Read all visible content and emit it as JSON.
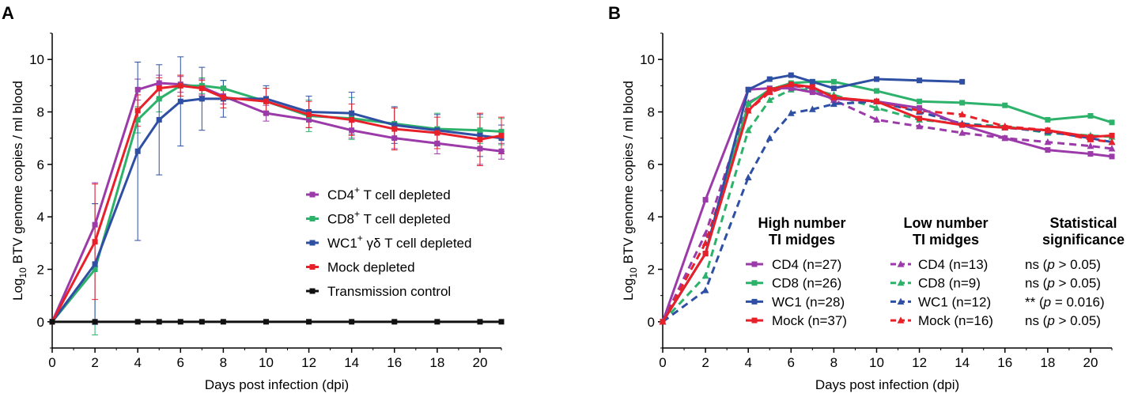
{
  "chart_data": [
    {
      "panel": "A",
      "type": "line",
      "xlabel": "Days post infection (dpi)",
      "ylabel": {
        "prefix": "Log",
        "sub": "10",
        "rest": " BTV genome copies / ml blood"
      },
      "xlim": [
        0,
        21
      ],
      "ylim": [
        -1,
        11
      ],
      "xticks": [
        0,
        2,
        4,
        6,
        8,
        10,
        12,
        14,
        16,
        18,
        20
      ],
      "yticks": [
        0,
        2,
        4,
        6,
        8,
        10
      ],
      "series": [
        {
          "name": "CD4+ T cell depleted",
          "label_main": "CD4",
          "label_sup": "+",
          "label_rest": " T cell depleted",
          "color": "#9b3aa8",
          "x": [
            0,
            2,
            4,
            5,
            6,
            7,
            8,
            10,
            12,
            14,
            16,
            18,
            20,
            21
          ],
          "y": [
            0,
            3.7,
            8.85,
            9.1,
            9.05,
            8.95,
            8.6,
            7.95,
            7.7,
            7.3,
            7.0,
            6.8,
            6.6,
            6.5
          ],
          "err": [
            0,
            1.6,
            0.4,
            0.3,
            0.3,
            0.3,
            0.3,
            0.3,
            0.3,
            0.3,
            0.4,
            0.4,
            0.6,
            0.3
          ]
        },
        {
          "name": "CD8+ T cell depleted",
          "label_main": "CD8",
          "label_sup": "+",
          "label_rest": " T cell depleted",
          "color": "#2db26b",
          "x": [
            0,
            2,
            4,
            5,
            6,
            7,
            8,
            10,
            12,
            14,
            16,
            18,
            20,
            21
          ],
          "y": [
            0,
            2.0,
            7.7,
            8.5,
            9.0,
            9.0,
            8.9,
            8.4,
            7.85,
            7.75,
            7.55,
            7.35,
            7.3,
            7.25
          ],
          "err": [
            0,
            2.5,
            0.5,
            0.5,
            0.4,
            0.3,
            0.3,
            0.5,
            0.6,
            0.8,
            0.6,
            0.6,
            0.5,
            0.5
          ]
        },
        {
          "name": "WC1+ γδ T cell depleted",
          "label_main": "WC1",
          "label_sup": "+",
          "label_rest": " γδ T cell depleted",
          "color": "#2e4fa3",
          "x": [
            0,
            2,
            4,
            5,
            6,
            7,
            8,
            10,
            12,
            14,
            16,
            18,
            20,
            21
          ],
          "y": [
            0,
            2.2,
            6.5,
            7.7,
            8.4,
            8.5,
            8.5,
            8.5,
            8.0,
            7.95,
            7.5,
            7.3,
            7.1,
            7.0
          ],
          "err": [
            0,
            2.3,
            3.4,
            2.1,
            1.7,
            1.2,
            0.7,
            0.5,
            0.6,
            0.8,
            0.7,
            0.6,
            0.8,
            0.5
          ]
        },
        {
          "name": "Mock depleted",
          "label_main": "Mock depleted",
          "label_sup": "",
          "label_rest": "",
          "color": "#e8202a",
          "x": [
            0,
            2,
            4,
            5,
            6,
            7,
            8,
            10,
            12,
            14,
            16,
            18,
            20,
            21
          ],
          "y": [
            0,
            3.05,
            8.05,
            8.9,
            9.0,
            8.9,
            8.55,
            8.4,
            7.9,
            7.7,
            7.35,
            7.2,
            6.95,
            7.1
          ],
          "err": [
            0,
            2.2,
            0.6,
            0.4,
            0.4,
            0.3,
            0.4,
            0.5,
            0.5,
            0.6,
            0.8,
            0.6,
            1.0,
            0.7
          ]
        },
        {
          "name": "Transmission control",
          "label_main": "Transmission control",
          "label_sup": "",
          "label_rest": "",
          "color": "#111111",
          "x": [
            0,
            2,
            4,
            5,
            6,
            7,
            8,
            10,
            12,
            14,
            16,
            18,
            20,
            21
          ],
          "y": [
            0,
            0,
            0,
            0,
            0,
            0,
            0,
            0,
            0,
            0,
            0,
            0,
            0,
            0
          ]
        }
      ]
    },
    {
      "panel": "B",
      "type": "line",
      "xlabel": "Days post infection (dpi)",
      "ylabel": {
        "prefix": "Log",
        "sub": "10",
        "rest": " BTV genome copies / ml blood"
      },
      "xlim": [
        0,
        21
      ],
      "ylim": [
        -1,
        11
      ],
      "xticks": [
        0,
        2,
        4,
        6,
        8,
        10,
        12,
        14,
        16,
        18,
        20
      ],
      "yticks": [
        0,
        2,
        4,
        6,
        8,
        10
      ],
      "legend": {
        "col_high": [
          "High number",
          "TI midges"
        ],
        "col_low": [
          "Low number",
          "TI midges"
        ],
        "col_stat": [
          "Statistical",
          "significance"
        ],
        "rows": [
          {
            "high": "CD4 (n=27)",
            "low": "CD4 (n=13)",
            "stat_pre": "ns (",
            "stat_p": "p",
            "stat_post": " > 0.05)",
            "color": "#9b3aa8"
          },
          {
            "high": "CD8 (n=26)",
            "low": "CD8 (n=9)",
            "stat_pre": "ns (",
            "stat_p": "p",
            "stat_post": " > 0.05)",
            "color": "#2db26b"
          },
          {
            "high": "WC1 (n=28)",
            "low": "WC1 (n=12)",
            "stat_pre": "** (",
            "stat_p": "p",
            "stat_post": " = 0.016)",
            "color": "#2e4fa3"
          },
          {
            "high": "Mock (n=37)",
            "low": "Mock (n=16)",
            "stat_pre": "ns (",
            "stat_p": "p",
            "stat_post": " > 0.05)",
            "color": "#e8202a"
          }
        ]
      },
      "series": [
        {
          "name": "CD4 (n=27)",
          "group": "high",
          "color": "#9b3aa8",
          "x": [
            0,
            2,
            4,
            5,
            6,
            7,
            8,
            10,
            12,
            14,
            16,
            18,
            20,
            21
          ],
          "y": [
            0,
            4.65,
            8.85,
            8.9,
            8.9,
            8.75,
            8.5,
            8.4,
            8.15,
            7.5,
            7.0,
            6.55,
            6.4,
            6.3
          ]
        },
        {
          "name": "CD8 (n=26)",
          "group": "high",
          "color": "#2db26b",
          "x": [
            0,
            2,
            4,
            5,
            6,
            7,
            8,
            10,
            12,
            14,
            16,
            18,
            20,
            21
          ],
          "y": [
            0,
            2.6,
            8.3,
            8.85,
            9.1,
            9.15,
            9.15,
            8.8,
            8.4,
            8.35,
            8.25,
            7.7,
            7.85,
            7.6
          ]
        },
        {
          "name": "WC1 (n=28)",
          "group": "high",
          "color": "#2e4fa3",
          "x": [
            0,
            2,
            4,
            5,
            6,
            7,
            8,
            10,
            12,
            14
          ],
          "y": [
            0,
            2.6,
            8.85,
            9.25,
            9.4,
            9.15,
            8.9,
            9.25,
            9.2,
            9.15
          ]
        },
        {
          "name": "Mock (n=37)",
          "group": "high",
          "color": "#e8202a",
          "x": [
            0,
            2,
            4,
            5,
            6,
            7,
            8,
            10,
            12,
            14,
            16,
            18,
            20,
            21
          ],
          "y": [
            0,
            2.6,
            8.05,
            8.85,
            9.05,
            8.95,
            8.55,
            8.4,
            7.75,
            7.5,
            7.4,
            7.3,
            7.05,
            7.1
          ]
        },
        {
          "name": "CD4 (n=13)",
          "group": "low",
          "color": "#9b3aa8",
          "x": [
            0,
            2,
            4,
            5,
            6,
            7,
            8,
            10,
            12,
            14,
            16,
            18,
            20,
            21
          ],
          "y": [
            0,
            3.35,
            8.35,
            8.8,
            9.0,
            8.9,
            8.45,
            7.7,
            7.45,
            7.2,
            7.0,
            6.85,
            6.7,
            6.6
          ]
        },
        {
          "name": "CD8 (n=9)",
          "group": "low",
          "color": "#2db26b",
          "x": [
            0,
            2,
            4,
            5,
            6,
            7,
            8,
            10,
            12,
            14,
            16,
            18,
            20,
            21
          ],
          "y": [
            0,
            1.75,
            7.3,
            8.45,
            8.85,
            8.85,
            8.65,
            8.15,
            7.7,
            7.55,
            7.45,
            7.2,
            7.1,
            7.05
          ]
        },
        {
          "name": "WC1 (n=12)",
          "group": "low",
          "color": "#2e4fa3",
          "x": [
            0,
            2,
            4,
            5,
            6,
            7,
            8,
            10,
            12,
            14,
            16,
            18,
            20,
            21
          ],
          "y": [
            0,
            1.2,
            5.5,
            7.0,
            7.95,
            8.1,
            8.3,
            8.4,
            8.0,
            7.55,
            7.4,
            7.25,
            7.0,
            6.85
          ]
        },
        {
          "name": "Mock (n=16)",
          "group": "low",
          "color": "#e8202a",
          "x": [
            0,
            2,
            4,
            5,
            6,
            7,
            8,
            10,
            12,
            14,
            16,
            18,
            20,
            21
          ],
          "y": [
            0,
            3.0,
            8.05,
            8.75,
            9.0,
            8.95,
            8.55,
            8.4,
            8.05,
            7.9,
            7.45,
            7.3,
            6.95,
            6.85
          ]
        }
      ]
    }
  ]
}
